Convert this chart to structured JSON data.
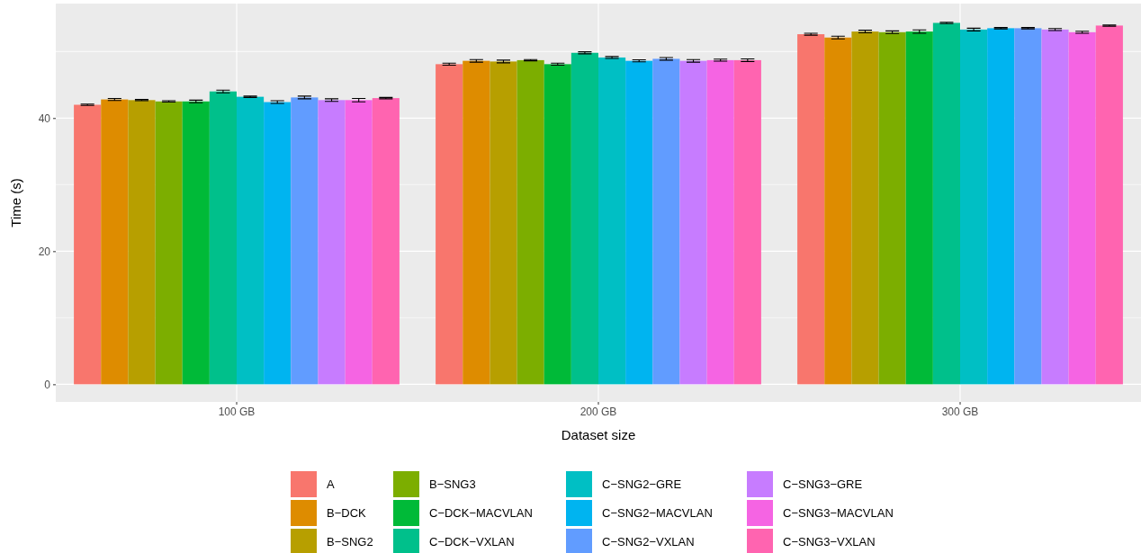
{
  "chart_data": {
    "type": "bar",
    "xlabel": "Dataset size",
    "ylabel": "Time (s)",
    "categories": [
      "100 GB",
      "200 GB",
      "300 GB"
    ],
    "ylim": [
      -2.65,
      57.2
    ],
    "yticks": [
      0,
      20,
      40
    ],
    "grid": true,
    "legend": "bottom",
    "series": [
      {
        "name": "A",
        "color": "#f8766d",
        "values": [
          42.0,
          48.1,
          52.6
        ],
        "errors": [
          0.1,
          0.15,
          0.15
        ]
      },
      {
        "name": "B−DCK",
        "color": "#de8c00",
        "values": [
          42.8,
          48.6,
          52.1
        ],
        "errors": [
          0.15,
          0.2,
          0.2
        ]
      },
      {
        "name": "B−SNG2",
        "color": "#b79f00",
        "values": [
          42.7,
          48.5,
          53.0
        ],
        "errors": [
          0.1,
          0.2,
          0.2
        ]
      },
      {
        "name": "B−SNG3",
        "color": "#7cae00",
        "values": [
          42.5,
          48.7,
          52.9
        ],
        "errors": [
          0.1,
          0.1,
          0.2
        ]
      },
      {
        "name": "C−DCK−MACVLAN",
        "color": "#00ba38",
        "values": [
          42.5,
          48.1,
          53.0
        ],
        "errors": [
          0.2,
          0.15,
          0.25
        ]
      },
      {
        "name": "C−DCK−VXLAN",
        "color": "#00c08b",
        "values": [
          44.0,
          49.8,
          54.3
        ],
        "errors": [
          0.2,
          0.15,
          0.1
        ]
      },
      {
        "name": "C−SNG2−GRE",
        "color": "#00bfc4",
        "values": [
          43.2,
          49.1,
          53.3
        ],
        "errors": [
          0.1,
          0.15,
          0.2
        ]
      },
      {
        "name": "C−SNG2−MACVLAN",
        "color": "#00b4f0",
        "values": [
          42.4,
          48.6,
          53.5
        ],
        "errors": [
          0.2,
          0.15,
          0.1
        ]
      },
      {
        "name": "C−SNG2−VXLAN",
        "color": "#619cff",
        "values": [
          43.1,
          48.9,
          53.5
        ],
        "errors": [
          0.2,
          0.2,
          0.1
        ]
      },
      {
        "name": "C−SNG3−GRE",
        "color": "#c77cff",
        "values": [
          42.7,
          48.6,
          53.3
        ],
        "errors": [
          0.2,
          0.2,
          0.15
        ]
      },
      {
        "name": "C−SNG3−MACVLAN",
        "color": "#f564e3",
        "values": [
          42.7,
          48.7,
          52.9
        ],
        "errors": [
          0.25,
          0.15,
          0.15
        ]
      },
      {
        "name": "C−SNG3−VXLAN",
        "color": "#ff64b0",
        "values": [
          43.0,
          48.7,
          53.9
        ],
        "errors": [
          0.1,
          0.2,
          0.1
        ]
      }
    ]
  }
}
